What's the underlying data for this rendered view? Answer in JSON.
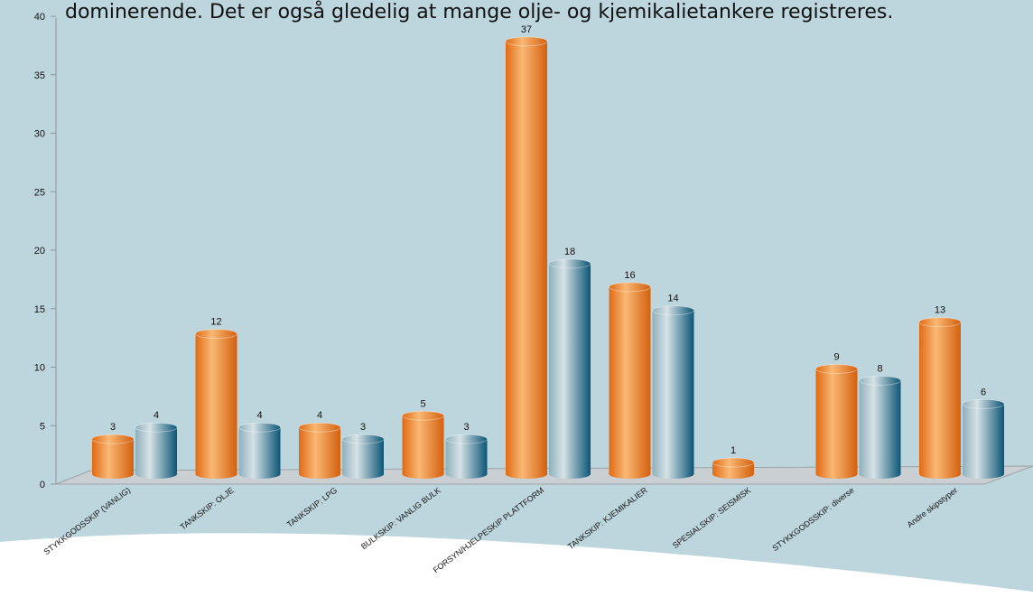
{
  "chart_data": {
    "type": "bar",
    "title": "dominerende. Det er også gledelig at mange olje- og kjemikalietankere registreres.",
    "categories": [
      "STYKKGODSSKIP (VANLIG)",
      "TANKSKIP: OLJE",
      "TANKSKIP: LPG",
      "BULKSKIP: VANLIG BULK",
      "FORSYN/HJELPESKIP PLATTFORM",
      "TANKSKIP: KJEMIKALIER",
      "SPESIALSKIP: SEISMISK",
      "STYKKGODSSKIP: diverse",
      "Andre skipstyper"
    ],
    "series": [
      {
        "color": "#ee8a30",
        "values": [
          3,
          12,
          4,
          5,
          37,
          16,
          1,
          9,
          13
        ]
      },
      {
        "color": "#1f6a88",
        "values": [
          4,
          4,
          3,
          3,
          18,
          14,
          null,
          8,
          6
        ]
      }
    ],
    "ylim": [
      0,
      40
    ],
    "yticks": [
      0,
      5,
      10,
      15,
      20,
      25,
      30,
      35,
      40
    ]
  }
}
